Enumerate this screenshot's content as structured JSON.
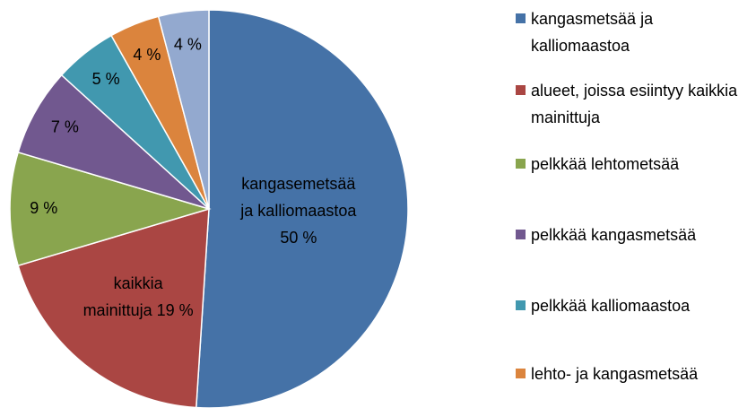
{
  "chart_data": {
    "type": "pie",
    "categories": [
      "kangasmetsää ja kalliomaastoa",
      "alueet, joissa esiintyy kaikkia mainittuja",
      "pelkkää lehtometsää",
      "pelkkää kangasmetsää",
      "pelkkää kalliomaastoa",
      "lehto- ja kangasmetsää",
      null
    ],
    "values": [
      50,
      19,
      9,
      7,
      5,
      4,
      4
    ],
    "value_labels": [
      "kangasemetsää\nja kalliomaastoa\n50 %",
      "kaikkia\nmainittuja 19 %",
      "9 %",
      "7 %",
      "5 %",
      "4 %",
      "4 %"
    ],
    "colors": [
      "#4572a7",
      "#aa4643",
      "#89a54e",
      "#71588f",
      "#4198af",
      "#db843d",
      "#93a9cf"
    ],
    "legend": "right"
  }
}
